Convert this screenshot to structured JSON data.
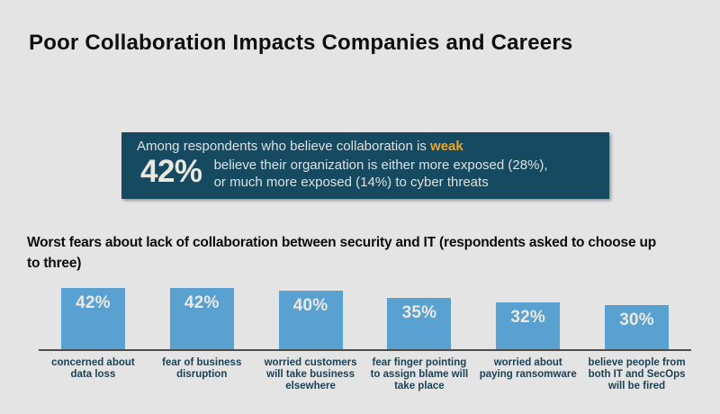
{
  "page": {
    "background_color": "#e4e4e4"
  },
  "title": "Poor Collaboration Impacts Companies and Careers",
  "callout": {
    "background_color": "#154a60",
    "text_color": "#dbe1e3",
    "line1_prefix": "Among respondents who believe collaboration is ",
    "line1_highlight": "weak",
    "highlight_color": "#e9a82f",
    "stat": "42%",
    "stat_color": "#eae7df",
    "body_line1": "believe their organization is either more exposed (28%),",
    "body_line2": "or much more exposed (14%) to cyber threats"
  },
  "chart_heading": "Worst fears about lack of collaboration between security and IT (respondents asked to choose up to three)",
  "chart_data": {
    "type": "bar",
    "title": "Worst fears about lack of collaboration between security and IT (respondents asked to choose up to three)",
    "categories": [
      "concerned about data loss",
      "fear of business disruption",
      "worried customers will take business elsewhere",
      "fear finger pointing to assign blame will take place",
      "worried about paying ransomware",
      "believe people from both IT and SecOps will be fired"
    ],
    "values": [
      42,
      42,
      40,
      35,
      32,
      30
    ],
    "value_labels": [
      "42%",
      "42%",
      "40%",
      "35%",
      "32%",
      "30%"
    ],
    "xlabel": "",
    "ylabel": "",
    "ylim": [
      0,
      45
    ],
    "grid": false,
    "legend": false,
    "bar_color": "#58a1d1",
    "value_label_color": "#ece9e2",
    "category_label_color": "#1c4257",
    "axis_line_color": "#4d4d4d"
  }
}
